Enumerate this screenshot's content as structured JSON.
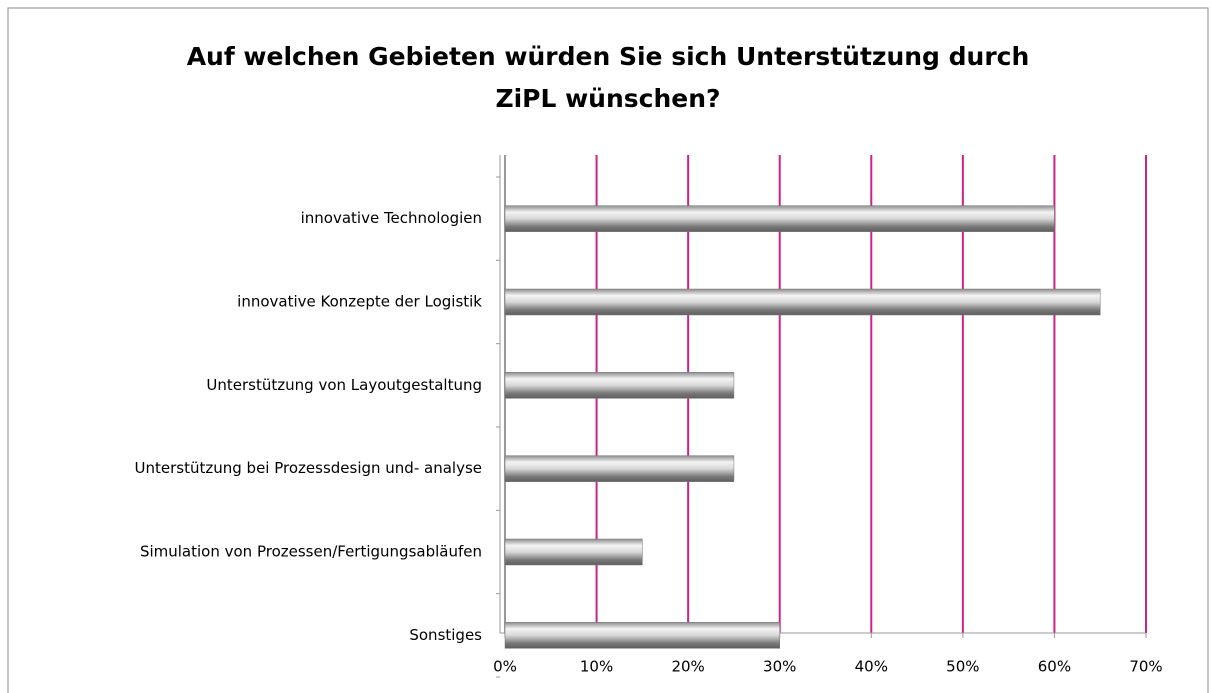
{
  "chart_data": {
    "type": "bar",
    "orientation": "horizontal",
    "title": [
      "Auf welchen Gebieten würden Sie sich Unterstützung  durch",
      "ZiPL wünschen?"
    ],
    "categories": [
      "innovative Technologien",
      "innovative Konzepte der Logistik",
      "Unterstützung von Layoutgestaltung",
      "Unterstützung bei Prozessdesign und- analyse",
      "Simulation von Prozessen/Fertigungsabläufen",
      "Sonstiges"
    ],
    "values": [
      60,
      65,
      25,
      25,
      15,
      30
    ],
    "color": "#9a9a9a",
    "grid_color": "#cc2288",
    "xlim": [
      0,
      70
    ],
    "xticks": [
      {
        "value": 0,
        "label": "0%"
      },
      {
        "value": 10,
        "label": "10%"
      },
      {
        "value": 20,
        "label": "20%"
      },
      {
        "value": 30,
        "label": "30%"
      },
      {
        "value": 40,
        "label": "40%"
      },
      {
        "value": 50,
        "label": "50%"
      },
      {
        "value": 60,
        "label": "60%"
      },
      {
        "value": 70,
        "label": "70%"
      }
    ],
    "grid": true
  }
}
